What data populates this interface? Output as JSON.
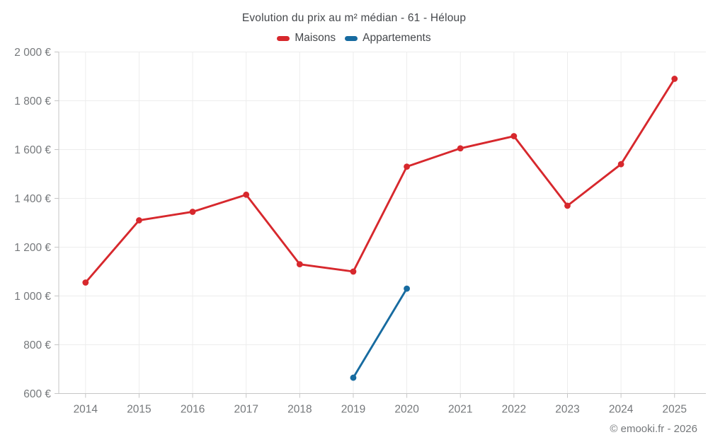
{
  "chart_data": {
    "type": "line",
    "title": "Evolution du prix au m² médian - 61 - Héloup",
    "categories": [
      "2014",
      "2015",
      "2016",
      "2017",
      "2018",
      "2019",
      "2020",
      "2021",
      "2022",
      "2023",
      "2024",
      "2025"
    ],
    "series": [
      {
        "name": "Maisons",
        "color": "#d7282d",
        "marker": "circle",
        "values": [
          1055,
          1310,
          1345,
          1415,
          1130,
          1100,
          1530,
          1605,
          1655,
          1370,
          1540,
          1890
        ]
      },
      {
        "name": "Appartements",
        "color": "#176ba0",
        "marker": "circle",
        "values": [
          null,
          null,
          null,
          null,
          null,
          665,
          1030,
          null,
          null,
          null,
          null,
          null
        ]
      }
    ],
    "xlabel": "",
    "ylabel": "",
    "ylim": [
      600,
      2000
    ],
    "y_ticks": [
      600,
      800,
      1000,
      1200,
      1400,
      1600,
      1800,
      2000
    ],
    "y_tick_labels": [
      "600 €",
      "800 €",
      "1 000 €",
      "1 200 €",
      "1 400 €",
      "1 600 €",
      "1 800 €",
      "2 000 €"
    ],
    "currency": "€",
    "grid": true,
    "legend_position": "top"
  },
  "footer": {
    "credit": "© emooki.fr - 2026"
  },
  "colors": {
    "background": "#ffffff",
    "grid": "#ededed",
    "axis": "#c6c6c6",
    "tick_label": "#75787b",
    "heading_text": "#45484c",
    "maisons_red": "#d7282d",
    "appartements_blue": "#176ba0"
  }
}
